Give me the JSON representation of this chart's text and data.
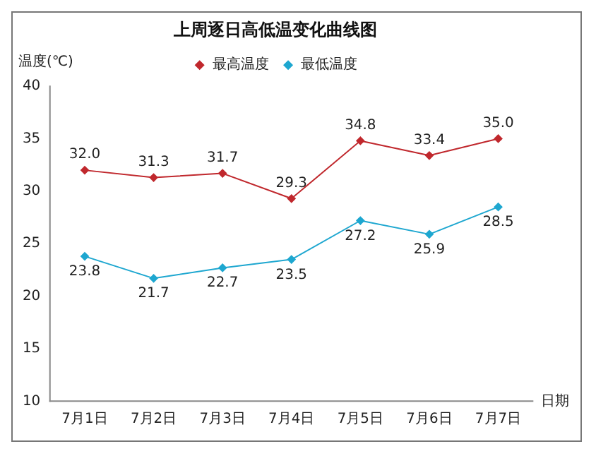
{
  "chart_data": {
    "type": "line",
    "title": "上周逐日高低温变化曲线图",
    "ylabel": "温度(℃)",
    "xlabel": "日期",
    "categories": [
      "7月1日",
      "7月2日",
      "7月3日",
      "7月4日",
      "7月5日",
      "7月6日",
      "7月7日"
    ],
    "series": [
      {
        "name": "最高温度",
        "color": "#c0282d",
        "values": [
          32.0,
          31.3,
          31.7,
          29.3,
          34.8,
          33.4,
          35.0
        ],
        "value_labels": [
          "32.0",
          "31.3",
          "31.7",
          "29.3",
          "34.8",
          "33.4",
          "35.0"
        ]
      },
      {
        "name": "最低温度",
        "color": "#1ea7d0",
        "values": [
          23.8,
          21.7,
          22.7,
          23.5,
          27.2,
          25.9,
          28.5
        ],
        "value_labels": [
          "23.8",
          "21.7",
          "22.7",
          "23.5",
          "27.2",
          "25.9",
          "28.5"
        ]
      }
    ],
    "ylim": [
      10,
      40
    ],
    "yticks": [
      10,
      15,
      20,
      25,
      30,
      35,
      40
    ],
    "grid": false,
    "legend": "top",
    "marker": "diamond",
    "line_style": "solid"
  }
}
